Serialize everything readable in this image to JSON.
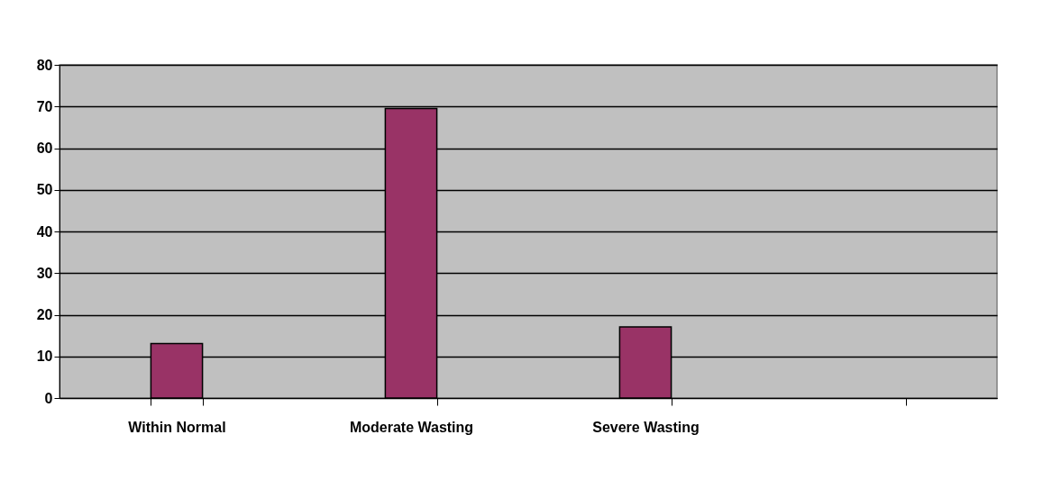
{
  "chart_data": {
    "type": "bar",
    "categories": [
      "Within Normal",
      "Moderate Wasting",
      "Severe Wasting",
      null
    ],
    "values": [
      13.1,
      69.5,
      17.1,
      null
    ],
    "color": "#993366",
    "ylim": [
      0,
      80
    ],
    "yticks": [
      0,
      10,
      20,
      30,
      40,
      50,
      60,
      70,
      80
    ],
    "grid": "y"
  }
}
